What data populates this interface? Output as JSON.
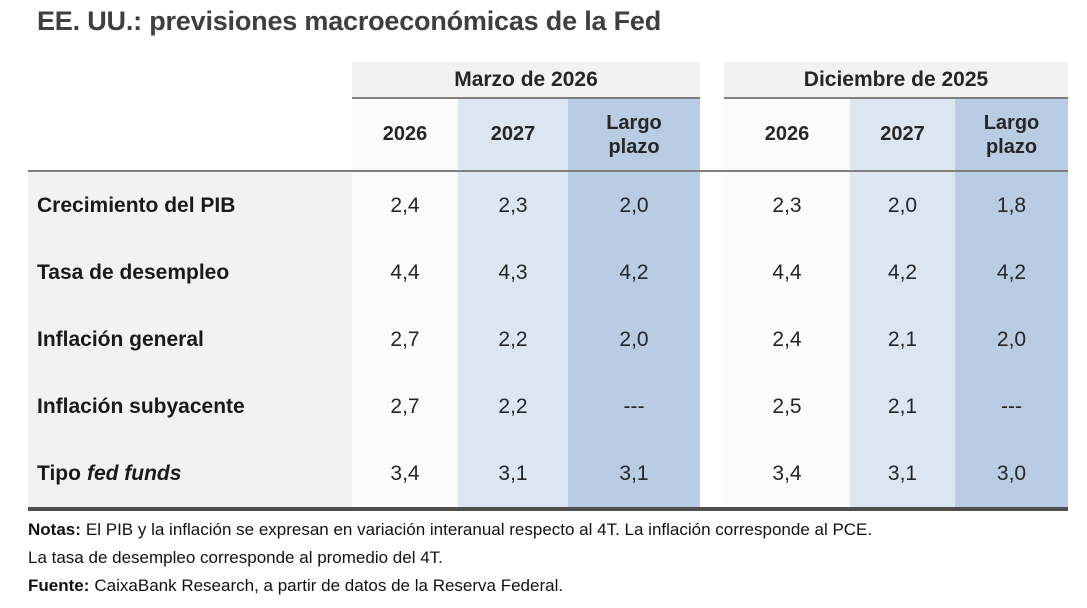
{
  "title": "EE. UU.: previsiones macroeconómicas de la Fed",
  "colors": {
    "header_band": "#f2f2f2",
    "col_white": "#fbfbfb",
    "col_light_blue": "#dce6f1",
    "col_medium_blue": "#b8cce4",
    "divider": "#7f7f7f",
    "bottom_border": "#4f4f4f",
    "title_text": "#3f3f3f"
  },
  "chart_data": {
    "type": "table",
    "title": "EE. UU.: previsiones macroeconómicas de la Fed",
    "column_groups": [
      "Marzo de 2026",
      "Diciembre de 2025"
    ],
    "columns": [
      "2026",
      "2027",
      "Largo plazo",
      "2026",
      "2027",
      "Largo plazo"
    ],
    "rows": [
      {
        "label": "Crecimiento del PIB",
        "values": [
          "2,4",
          "2,3",
          "2,0",
          "2,3",
          "2,0",
          "1,8"
        ]
      },
      {
        "label": "Tasa de desempleo",
        "values": [
          "4,4",
          "4,3",
          "4,2",
          "4,4",
          "4,2",
          "4,2"
        ]
      },
      {
        "label": "Inflación general",
        "values": [
          "2,7",
          "2,2",
          "2,0",
          "2,4",
          "2,1",
          "2,0"
        ]
      },
      {
        "label": "Inflación subyacente",
        "values": [
          "2,7",
          "2,2",
          "---",
          "2,5",
          "2,1",
          "---"
        ]
      },
      {
        "label": "Tipo",
        "label_italic": "fed funds",
        "values": [
          "3,4",
          "3,1",
          "3,1",
          "3,4",
          "3,1",
          "3,0"
        ]
      }
    ]
  },
  "notes": {
    "notas_label": "Notas:",
    "line1": "El PIB y la inflación se expresan en variación interanual respecto al 4T. La inflación corresponde al PCE.",
    "line2": "La tasa de desempleo corresponde al promedio del 4T.",
    "fuente_label": "Fuente:",
    "fuente_text": "CaixaBank Research, a partir de datos de la Reserva Federal."
  }
}
